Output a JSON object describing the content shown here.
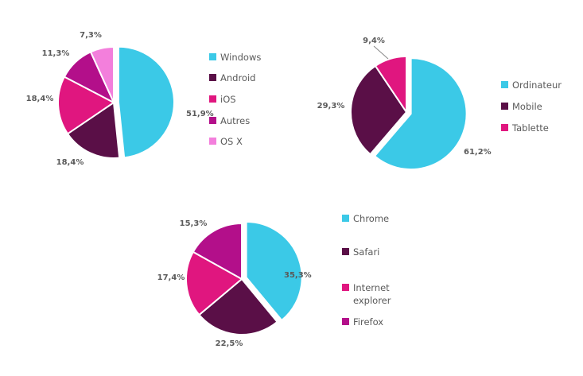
{
  "chart_data": [
    {
      "type": "pie",
      "categories": [
        "Windows",
        "Android",
        "iOS",
        "Autres",
        "OS X"
      ],
      "values": [
        51.9,
        18.4,
        18.4,
        11.3,
        7.3
      ],
      "labels": [
        "51,9%",
        "18,4%",
        "18,4%",
        "11,3%",
        "7,3%"
      ],
      "colors": [
        "#3bc9e7",
        "#5a0f47",
        "#e0167f",
        "#b30f8a",
        "#f37fdc"
      ],
      "exploded": "Windows",
      "legend": "right"
    },
    {
      "type": "pie",
      "categories": [
        "Ordinateur",
        "Mobile",
        "Tablette"
      ],
      "values": [
        61.2,
        29.3,
        9.4
      ],
      "labels": [
        "61,2%",
        "29,3%",
        "9,4%"
      ],
      "colors": [
        "#3bc9e7",
        "#5a0f47",
        "#e0167f"
      ],
      "exploded": "Ordinateur",
      "legend": "right"
    },
    {
      "type": "pie",
      "categories": [
        "Chrome",
        "Safari",
        "Internet explorer",
        "Firefox"
      ],
      "legend_lines": [
        [
          "Chrome"
        ],
        [
          "Safari"
        ],
        [
          "Internet",
          "explorer"
        ],
        [
          "Firefox"
        ]
      ],
      "values": [
        35.3,
        22.5,
        17.4,
        15.3
      ],
      "labels": [
        "35,3%",
        "22,5%",
        "17,4%",
        "15,3%"
      ],
      "colors": [
        "#3bc9e7",
        "#5a0f47",
        "#e0167f",
        "#b30f8a"
      ],
      "exploded": "Chrome",
      "legend": "right"
    }
  ]
}
